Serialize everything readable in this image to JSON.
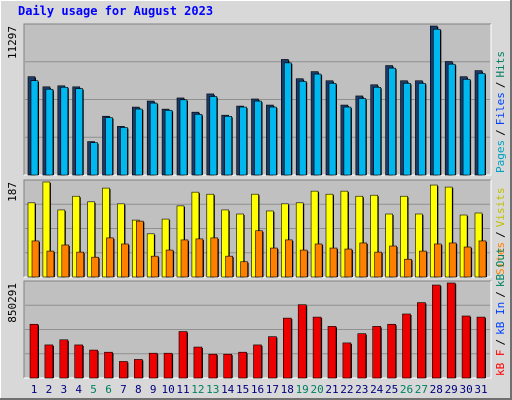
{
  "chart_data": {
    "type": "bar",
    "title": "Daily usage for August 2023",
    "categories": [
      "1",
      "2",
      "3",
      "4",
      "5",
      "6",
      "7",
      "8",
      "9",
      "10",
      "11",
      "12",
      "13",
      "14",
      "15",
      "16",
      "17",
      "18",
      "19",
      "20",
      "21",
      "22",
      "23",
      "24",
      "25",
      "26",
      "27",
      "28",
      "29",
      "30",
      "31"
    ],
    "label_color": "#000080",
    "weekend_label_color": "#008060",
    "weekend_indices": [
      4,
      5,
      11,
      12,
      18,
      19,
      25,
      26
    ],
    "legend_separator": "/",
    "panels": [
      {
        "ylim": [
          0,
          11297
        ],
        "series": [
          {
            "color": "#1a3a6a",
            "values": [
              7455,
              6686,
              6763,
              6686,
              2536,
              4457,
              3689,
              5149,
              5610,
              4995,
              5841,
              4765,
              6148,
              4534,
              5226,
              5764,
              5303,
              8761,
              7301,
              7839,
              7147,
              5303,
              5994,
              6840,
              8300,
              7147,
              7147,
              11297,
              8607,
              7455,
              7916
            ]
          },
          {
            "color": "#00b8f0",
            "values": [
              7150,
              6500,
              6650,
              6550,
              2450,
              4350,
              3600,
              5000,
              5450,
              4900,
              5700,
              4600,
              5950,
              4450,
              5150,
              5600,
              5150,
              8500,
              7100,
              7650,
              6950,
              5150,
              5800,
              6650,
              8100,
              6950,
              6950,
              11050,
              8400,
              7250,
              7700
            ]
          }
        ],
        "legend": [
          {
            "name": "Pages",
            "color": "#00a0c0"
          },
          {
            "name": "Files",
            "color": "#0040ff"
          },
          {
            "name": "Hits",
            "color": "#008060"
          }
        ]
      },
      {
        "ylim": [
          0,
          187
        ],
        "series": [
          {
            "color": "#ffff00",
            "values": [
              146,
              187,
              132,
              159,
              148,
              175,
              144,
              112,
              85,
              114,
              140,
              167,
              163,
              132,
              124,
              163,
              130,
              144,
              146,
              169,
              163,
              169,
              159,
              161,
              124,
              159,
              124,
              181,
              177,
              122,
              126
            ]
          },
          {
            "color": "#ff8000",
            "values": [
              71,
              51,
              63,
              49,
              39,
              77,
              65,
              110,
              41,
              53,
              73,
              75,
              77,
              41,
              30,
              91,
              57,
              73,
              53,
              65,
              57,
              55,
              67,
              49,
              61,
              35,
              51,
              65,
              67,
              59,
              71
            ]
          }
        ],
        "legend": [
          {
            "name": "Sites",
            "color": "#ff8000"
          },
          {
            "name": "Visits",
            "color": "#c0c000"
          }
        ]
      },
      {
        "ylim": [
          0,
          850291
        ],
        "series": [
          {
            "color": "#ee0000",
            "values": [
              481000,
              296000,
              342000,
              296000,
              250000,
              231000,
              148000,
              166000,
              222000,
              222000,
              416000,
              277000,
              213000,
              213000,
              231000,
              296000,
              370000,
              536000,
              656000,
              545000,
              462000,
              314000,
              397000,
              462000,
              481000,
              573000,
              675000,
              832000,
              850291,
              555000,
              545000
            ]
          }
        ],
        "legend": [
          {
            "name": "kB F",
            "color": "#ff0000"
          },
          {
            "name": "kB In",
            "color": "#0040ff"
          },
          {
            "name": "kB Out",
            "color": "#008060"
          }
        ]
      }
    ]
  }
}
